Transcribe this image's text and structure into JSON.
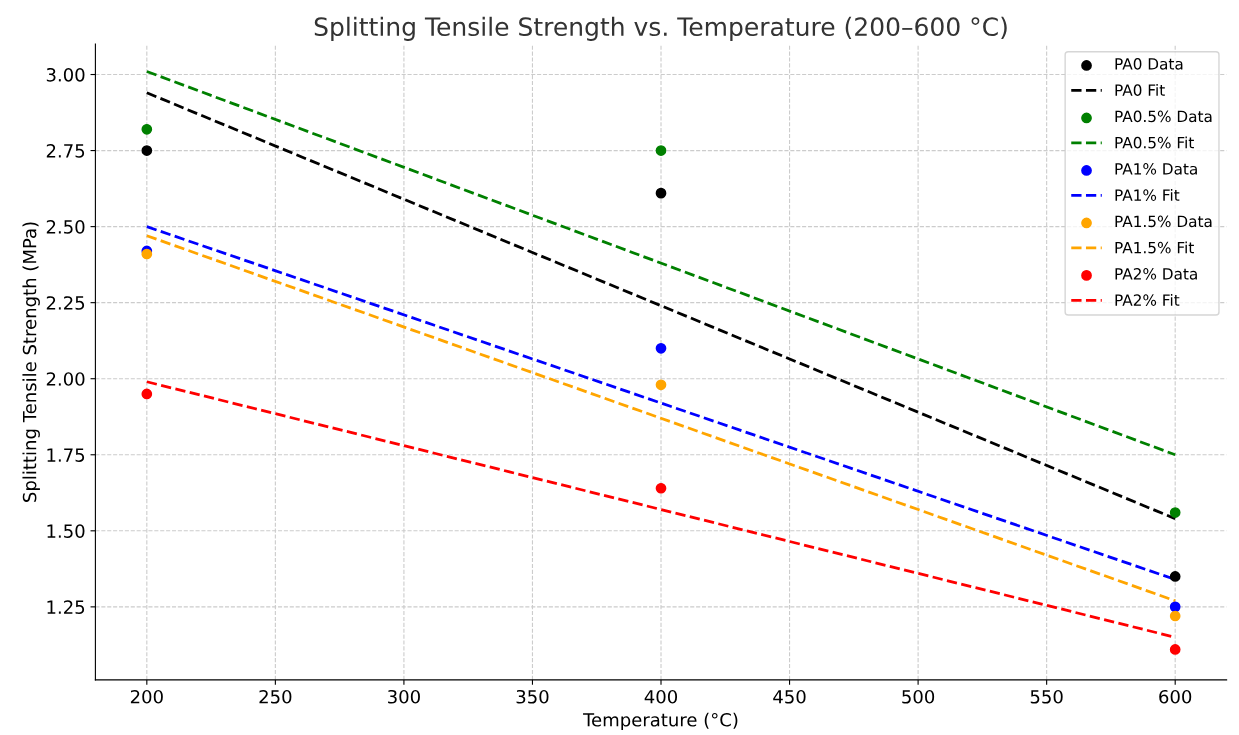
{
  "chart_data": {
    "type": "scatter",
    "title": "Splitting Tensile Strength vs. Temperature (200–600 °C)",
    "xlabel": "Temperature (°C)",
    "ylabel": "Splitting Tensile Strength (MPa)",
    "xlim": [
      180,
      620
    ],
    "xticks": [
      200,
      250,
      300,
      350,
      400,
      450,
      500,
      550,
      600
    ],
    "ylim": [
      1.01,
      3.1
    ],
    "yticks": [
      {
        "value": 1.25,
        "label": "1.25"
      },
      {
        "value": 1.5,
        "label": "1.50"
      },
      {
        "value": 1.75,
        "label": "1.75"
      },
      {
        "value": 2.0,
        "label": "2.00"
      },
      {
        "value": 2.25,
        "label": "2.25"
      },
      {
        "value": 2.5,
        "label": "2.50"
      },
      {
        "value": 2.75,
        "label": "2.75"
      },
      {
        "value": 3.0,
        "label": "3.00"
      }
    ],
    "grid": true,
    "legend": "top right",
    "series": [
      {
        "name": "PA0 Data",
        "marker": "circle",
        "color": "#000000",
        "x": [
          200,
          400,
          600
        ],
        "values": [
          2.75,
          2.61,
          1.35
        ]
      },
      {
        "name": "PA0 Fit",
        "type": "line",
        "line_style": "dashed",
        "color": "#000000",
        "x": [
          200,
          600
        ],
        "values": [
          2.94,
          1.54
        ]
      },
      {
        "name": "PA0.5% Data",
        "marker": "circle",
        "color": "#008000",
        "x": [
          200,
          400,
          600
        ],
        "values": [
          2.82,
          2.75,
          1.56
        ]
      },
      {
        "name": "PA0.5% Fit",
        "type": "line",
        "line_style": "dashed",
        "color": "#008000",
        "x": [
          200,
          600
        ],
        "values": [
          3.01,
          1.75
        ]
      },
      {
        "name": "PA1% Data",
        "marker": "circle",
        "color": "#0000ff",
        "x": [
          200,
          400,
          600
        ],
        "values": [
          2.42,
          2.1,
          1.25
        ]
      },
      {
        "name": "PA1% Fit",
        "type": "line",
        "line_style": "dashed",
        "color": "#0000ff",
        "x": [
          200,
          600
        ],
        "values": [
          2.5,
          1.34
        ]
      },
      {
        "name": "PA1.5% Data",
        "marker": "circle",
        "color": "#ffa500",
        "x": [
          200,
          400,
          600
        ],
        "values": [
          2.41,
          1.98,
          1.22
        ]
      },
      {
        "name": "PA1.5% Fit",
        "type": "line",
        "line_style": "dashed",
        "color": "#ffa500",
        "x": [
          200,
          600
        ],
        "values": [
          2.47,
          1.27
        ]
      },
      {
        "name": "PA2% Data",
        "marker": "circle",
        "color": "#ff0000",
        "x": [
          200,
          400,
          600
        ],
        "values": [
          1.95,
          1.64,
          1.11
        ]
      },
      {
        "name": "PA2% Fit",
        "type": "line",
        "line_style": "dashed",
        "color": "#ff0000",
        "x": [
          200,
          600
        ],
        "values": [
          1.99,
          1.15
        ]
      }
    ]
  }
}
